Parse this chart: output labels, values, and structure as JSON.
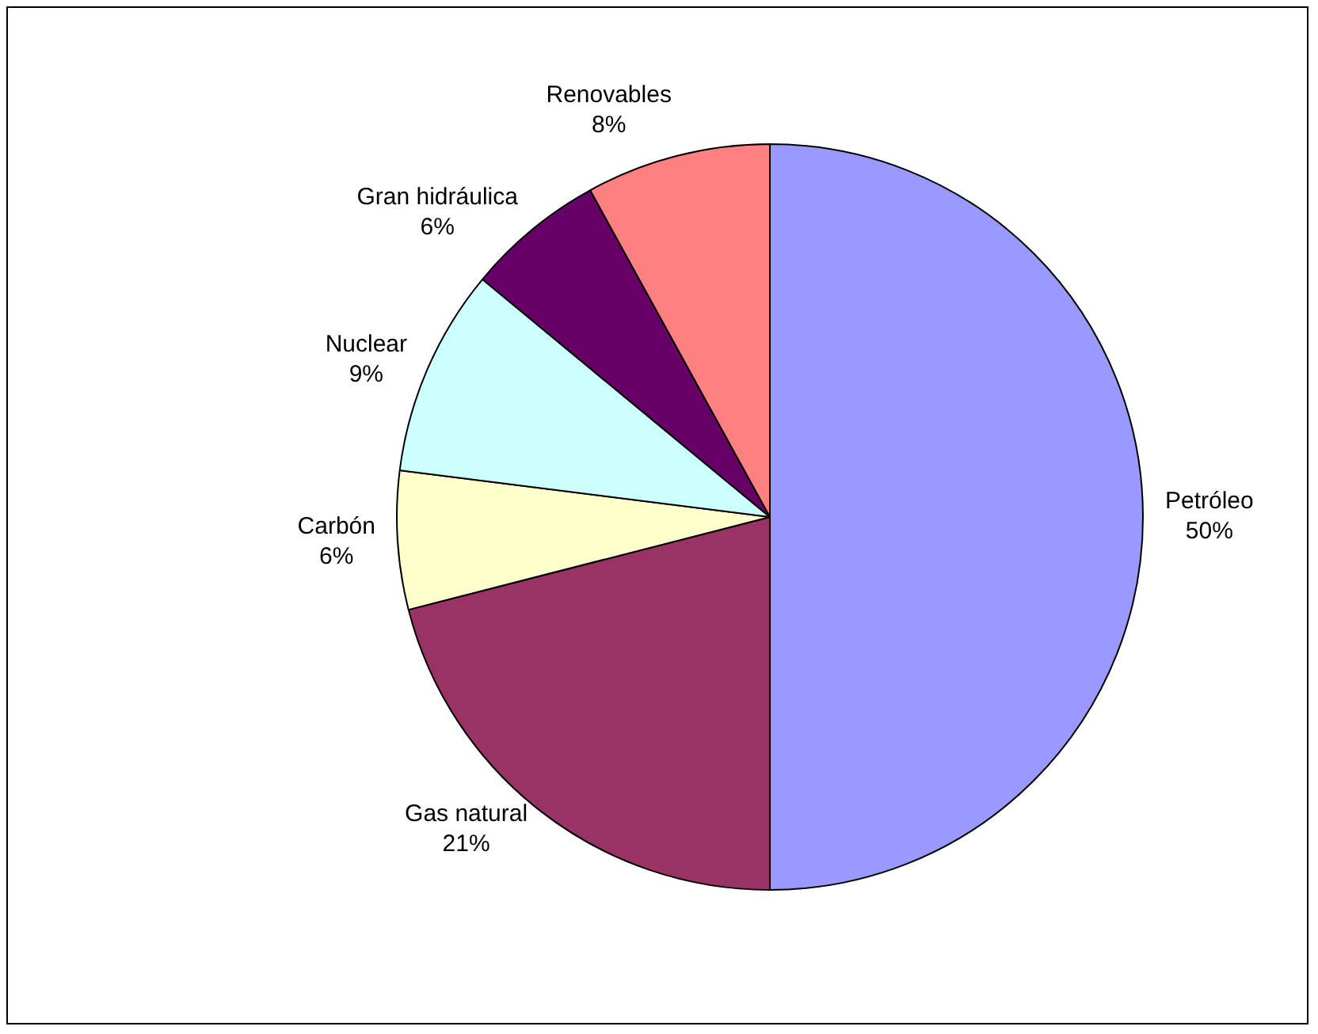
{
  "chart_data": {
    "type": "pie",
    "categories": [
      "Petróleo",
      "Gas natural",
      "Carbón",
      "Nuclear",
      "Gran hidráulica",
      "Renovables"
    ],
    "values": [
      50,
      21,
      6,
      9,
      6,
      8
    ],
    "colors": [
      "#9999ff",
      "#993366",
      "#ffffcc",
      "#ccffff",
      "#660066",
      "#ff8080"
    ],
    "value_labels": [
      "50%",
      "21%",
      "6%",
      "9%",
      "6%",
      "8%"
    ],
    "legend": false
  }
}
